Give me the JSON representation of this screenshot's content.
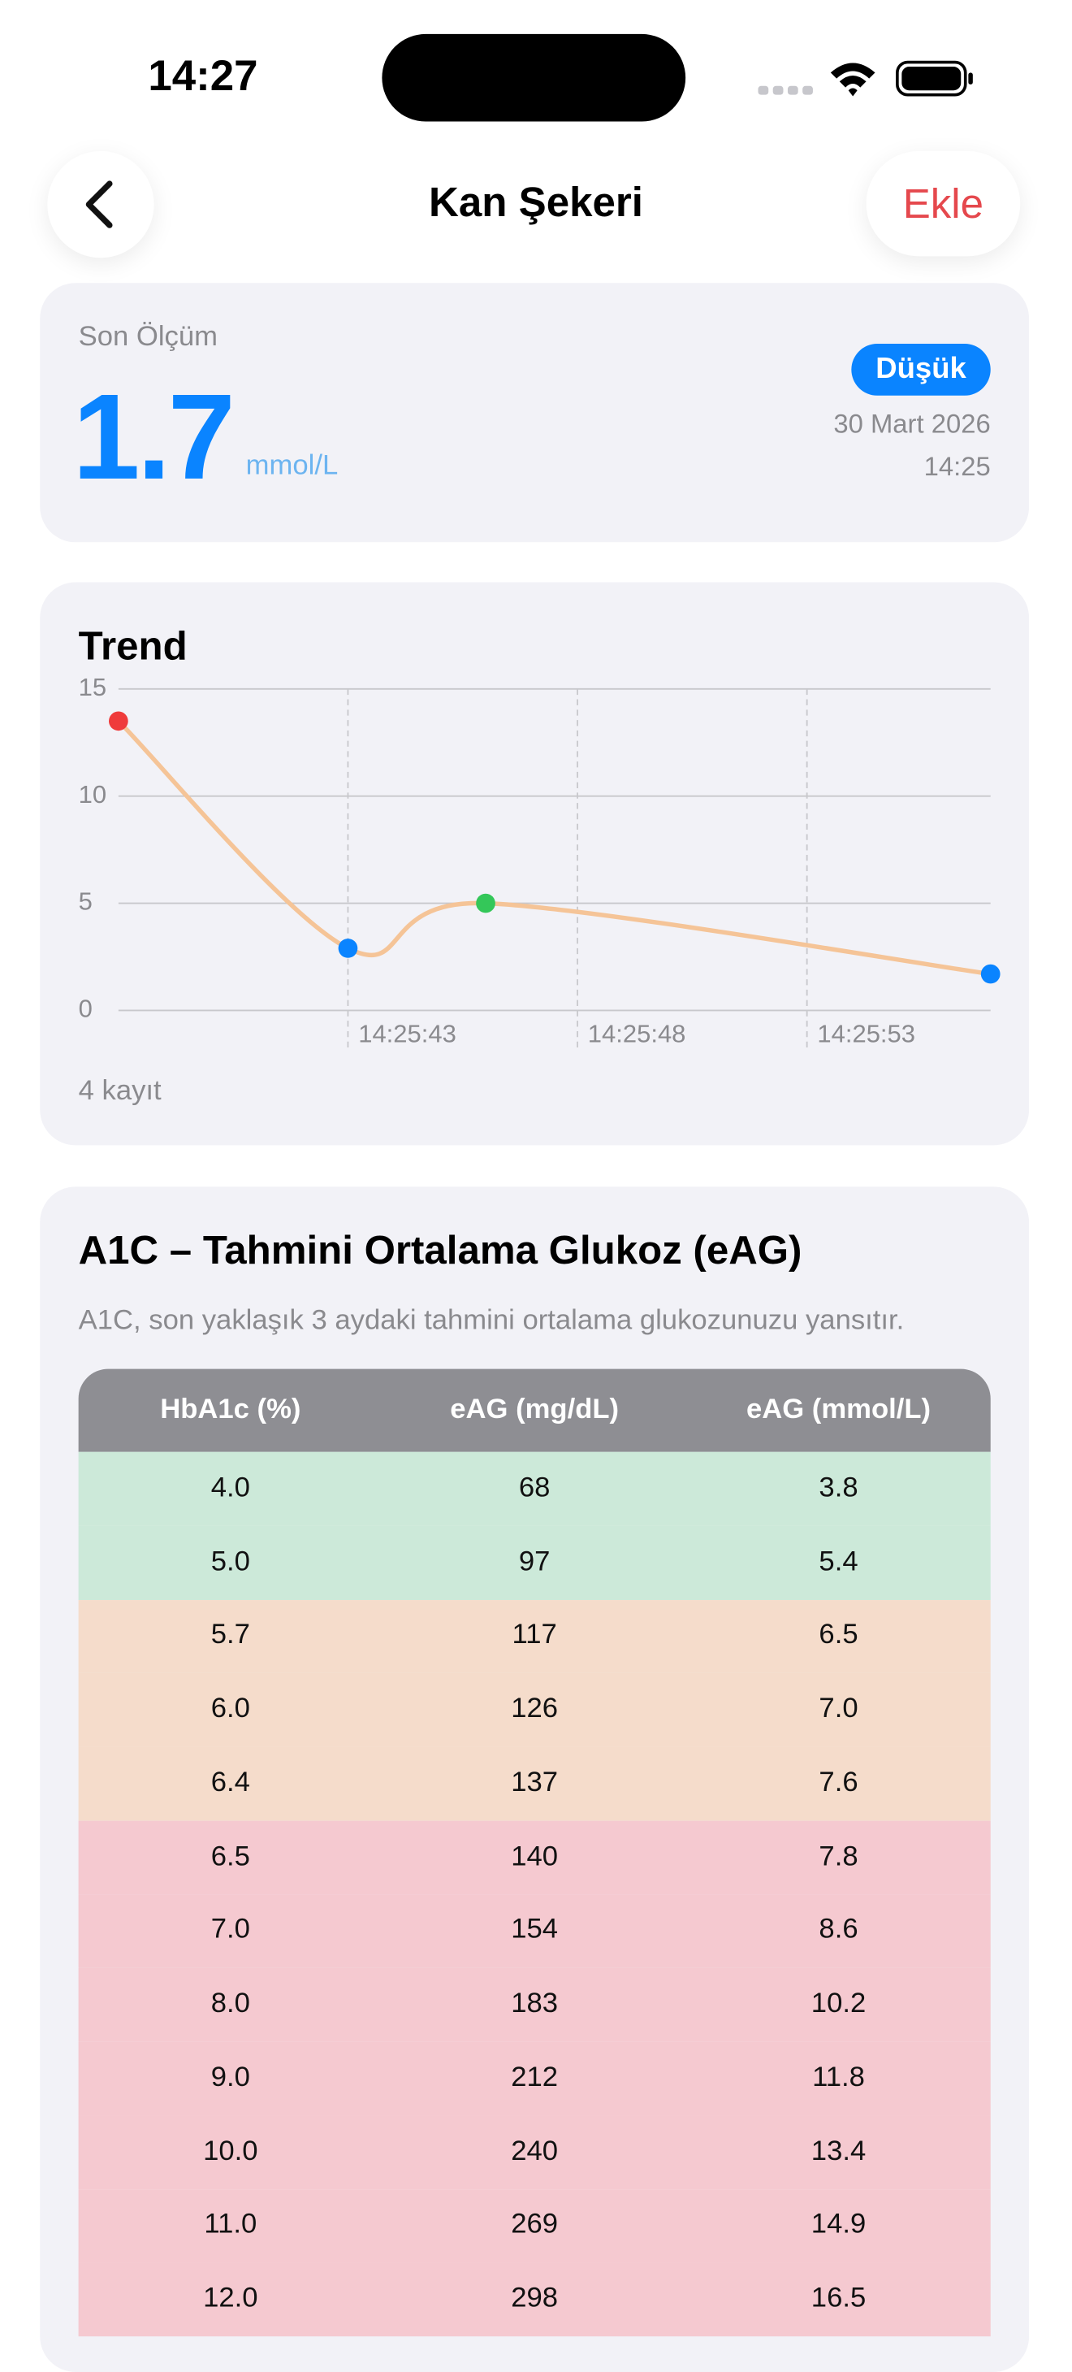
{
  "status_bar": {
    "time": "14:27"
  },
  "nav": {
    "title": "Kan Şekeri",
    "action": "Ekle"
  },
  "latest": {
    "label": "Son Ölçüm",
    "value": 1.7,
    "unit": "mmol/L",
    "badge": "Düşük",
    "date": "30 Mart 2026",
    "time": "14:25"
  },
  "chart_data": {
    "type": "line",
    "title": "Trend",
    "x": [
      "14:25:38",
      "14:25:43",
      "14:25:46",
      "14:25:57"
    ],
    "values": [
      13.5,
      2.9,
      5.0,
      1.7
    ],
    "point_colors": [
      "#ef3b3b",
      "#0a84ff",
      "#34c759",
      "#0a84ff"
    ],
    "color": "#f5c497",
    "xlim": [
      "14:25:38",
      "14:25:57"
    ],
    "xticks": [
      "14:25:43",
      "14:25:48",
      "14:25:53"
    ],
    "ylim": [
      0,
      15
    ],
    "yticks": [
      0,
      5,
      10,
      15
    ],
    "grid": true,
    "note": "4 kayıt"
  },
  "a1c": {
    "title": "A1C – Tahmini Ortalama Glukoz (eAG)",
    "description": "A1C, son yaklaşık 3 aydaki tahmini ortalama glukozunuzu yansıtır.",
    "columns": [
      "HbA1c (%)",
      "eAG (mg/dL)",
      "eAG (mmol/L)"
    ],
    "groups": [
      {
        "color": "#cce9d9",
        "rows": [
          [
            "4.0",
            "68",
            "3.8"
          ],
          [
            "5.0",
            "97",
            "5.4"
          ]
        ]
      },
      {
        "color": "#f5dccb",
        "rows": [
          [
            "5.7",
            "117",
            "6.5"
          ],
          [
            "6.0",
            "126",
            "7.0"
          ],
          [
            "6.4",
            "137",
            "7.6"
          ]
        ]
      },
      {
        "color": "#f5c9d0",
        "rows": [
          [
            "6.5",
            "140",
            "7.8"
          ],
          [
            "7.0",
            "154",
            "8.6"
          ],
          [
            "8.0",
            "183",
            "10.2"
          ],
          [
            "9.0",
            "212",
            "11.8"
          ],
          [
            "10.0",
            "240",
            "13.4"
          ],
          [
            "11.0",
            "269",
            "14.9"
          ],
          [
            "12.0",
            "298",
            "16.5"
          ]
        ]
      }
    ]
  }
}
